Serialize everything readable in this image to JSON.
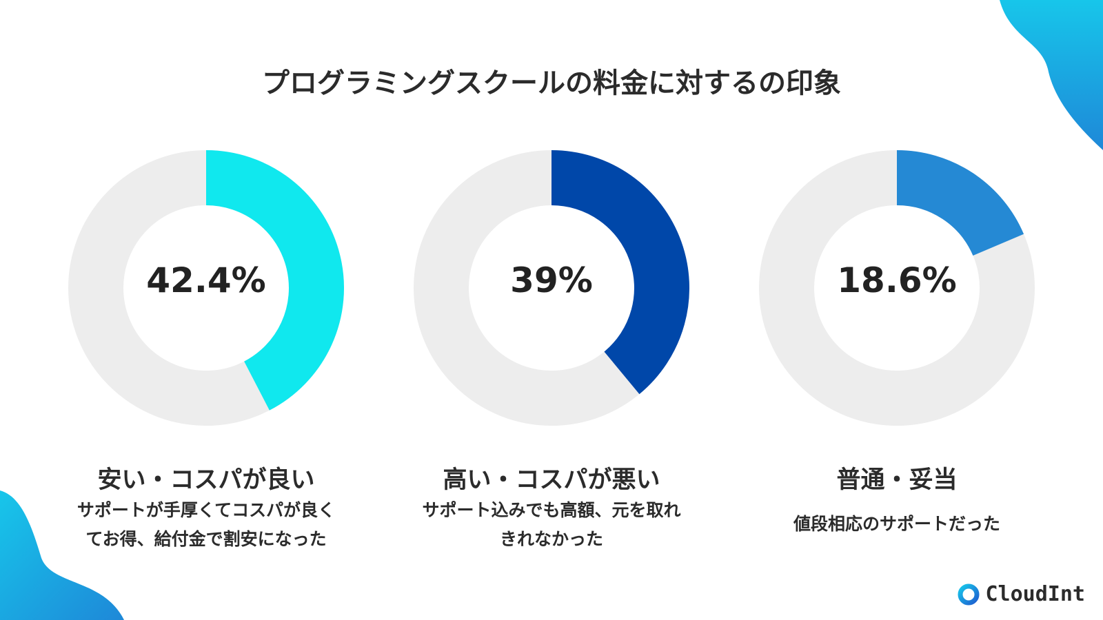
{
  "title": "プログラミングスクールの料金に対するの印象",
  "chart_data": [
    {
      "type": "pie",
      "value": 42.4,
      "value_label": "42.4%",
      "category": "安い・コスパが良い",
      "description": [
        "サポートが手厚くてコスパが良く",
        "てお得、給付金で割安になった"
      ],
      "color": "#10E8EE",
      "track_color": "#EDEDED"
    },
    {
      "type": "pie",
      "value": 39,
      "value_label": "39%",
      "category": "高い・コスパが悪い",
      "description": [
        "サポート込みでも高額、元を取れ",
        "きれなかった"
      ],
      "color": "#0047A9",
      "track_color": "#EDEDED"
    },
    {
      "type": "pie",
      "value": 18.6,
      "value_label": "18.6%",
      "category": "普通・妥当",
      "description": [
        "値段相応のサポートだった"
      ],
      "color": "#2589D4",
      "track_color": "#EDEDED"
    }
  ],
  "logo": {
    "text": "CloudInt"
  },
  "colors": {
    "blob_top": "#17C6EA",
    "blob_bottom": "#1E88D8"
  }
}
